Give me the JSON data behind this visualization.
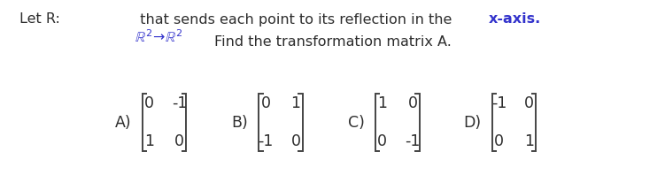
{
  "line1_part1": "Let R:  ",
  "line1_part2": "R²→R²",
  "line1_part3": "  that sends each point to its reflection in the ",
  "line1_part4": "x-axis.",
  "line2": "Find the transformation matrix A.",
  "options": [
    "A)",
    "B)",
    "C)",
    "D)"
  ],
  "matrices": [
    [
      [
        0,
        -1
      ],
      [
        1,
        0
      ]
    ],
    [
      [
        0,
        1
      ],
      [
        -1,
        0
      ]
    ],
    [
      [
        1,
        0
      ],
      [
        0,
        -1
      ]
    ],
    [
      [
        -1,
        0
      ],
      [
        0,
        1
      ]
    ]
  ],
  "bg_color": "#ffffff",
  "text_color": "#2d2d2d",
  "blue_color": "#3333cc",
  "title_fontsize": 11.5,
  "matrix_fontsize": 12.5,
  "bracket_color": "#444444",
  "bracket_lw": 1.4
}
